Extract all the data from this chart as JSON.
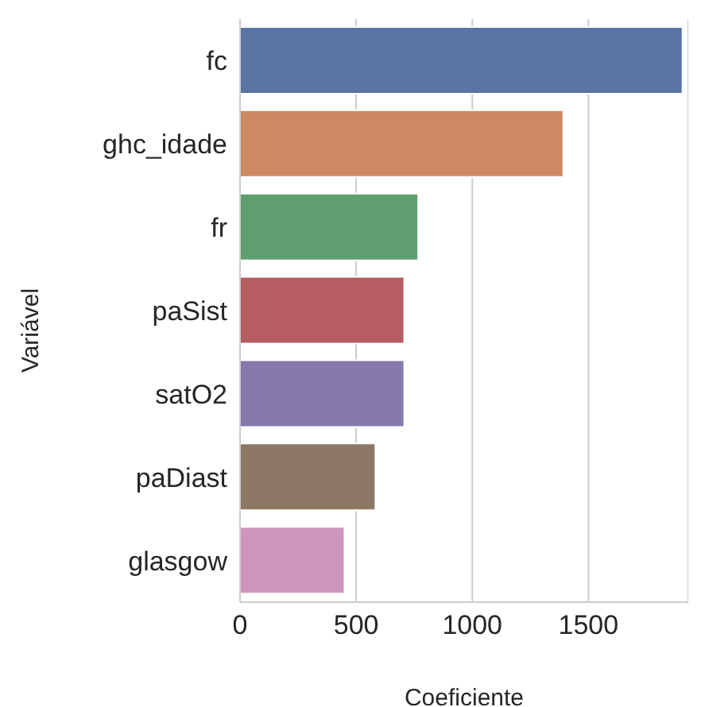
{
  "chart_data": {
    "type": "bar",
    "orientation": "horizontal",
    "xlabel": "Coeficiente",
    "ylabel": "Variável",
    "categories": [
      "fc",
      "ghc_idade",
      "fr",
      "paSist",
      "satO2",
      "paDiast",
      "glasgow"
    ],
    "values": [
      1905,
      1392,
      767,
      707,
      707,
      583,
      450
    ],
    "colors": [
      "#5975a4",
      "#cc8963",
      "#5f9e6e",
      "#b55d60",
      "#857aab",
      "#8d7866",
      "#d095bf"
    ],
    "xlim": [
      0,
      1930
    ],
    "xticks": [
      0,
      500,
      1000,
      1500
    ],
    "grid": "x"
  }
}
